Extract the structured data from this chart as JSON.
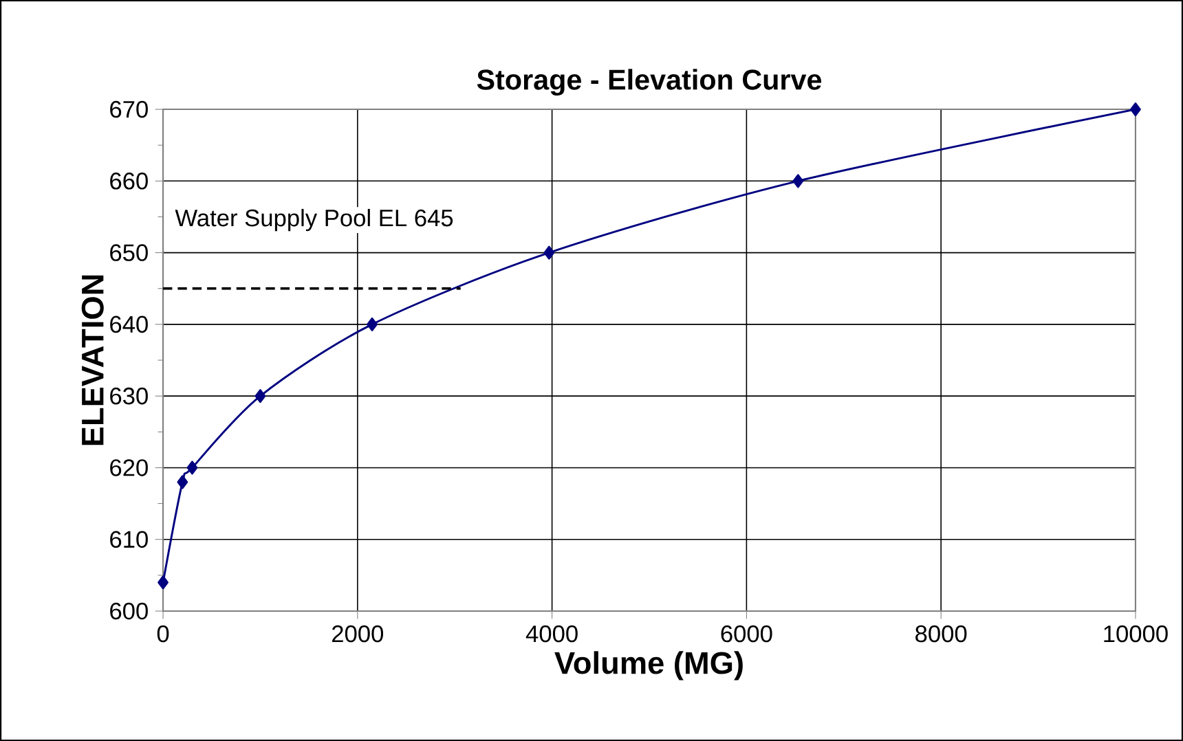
{
  "chart_data": {
    "type": "line",
    "title": "Storage - Elevation Curve",
    "xlabel": "Volume (MG)",
    "ylabel": "ELEVATION",
    "x": [
      0,
      200,
      300,
      1000,
      2150,
      3970,
      6530,
      10000
    ],
    "series": [
      {
        "color": "#000080",
        "values": [
          604,
          618,
          620,
          630,
          640,
          650,
          660,
          670
        ]
      }
    ],
    "xlim": [
      0,
      10000
    ],
    "xticks": [
      0,
      2000,
      4000,
      6000,
      8000,
      10000
    ],
    "ylim": [
      600,
      670
    ],
    "yticks": [
      600,
      610,
      620,
      630,
      640,
      650,
      660,
      670
    ],
    "grid": true,
    "marker": "diamond",
    "line_style": "solid",
    "ref_lines": [
      {
        "axis": "y",
        "value": 645,
        "label": "Water Supply Pool EL 645",
        "line_style": "dashed"
      }
    ]
  }
}
